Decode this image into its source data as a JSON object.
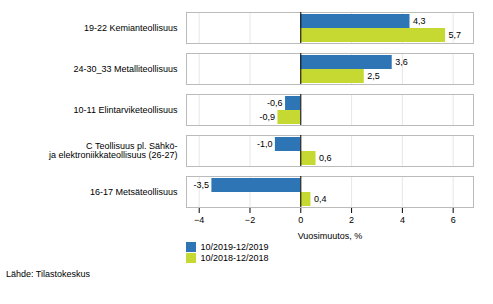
{
  "chart_data": {
    "type": "bar",
    "orientation": "horizontal",
    "categories": [
      "19-22 Kemianteollisuus",
      "24-30_33 Metalliteollisuus",
      "10-11 Elintarviketeollisuus",
      "C Teollisuus pl. Sähkö-\nja elektroniikkateollisuus (26-27)",
      "16-17 Metsäteollisuus"
    ],
    "series": [
      {
        "name": "10/2019-12/2019",
        "color": "#2E75B6",
        "values": [
          4.3,
          3.6,
          -0.6,
          -1.0,
          -3.5
        ],
        "value_labels": [
          "4,3",
          "3,6",
          "-0,6",
          "-1,0",
          "-3,5"
        ]
      },
      {
        "name": "10/2018-12/2018",
        "color": "#C5D932",
        "values": [
          5.7,
          2.5,
          -0.9,
          0.6,
          0.4
        ],
        "value_labels": [
          "5,7",
          "2,5",
          "-0,9",
          "0,6",
          "0,4"
        ]
      }
    ],
    "x_label": "Vuosimuutos, %",
    "xlim": [
      -4.5,
      6.8
    ],
    "xticks": [
      -4,
      -2,
      0,
      2,
      4,
      6
    ],
    "grid": true,
    "data_labels": true,
    "legend": "bottom",
    "annotations": [
      "Lähde: Tilastokeskus"
    ]
  }
}
